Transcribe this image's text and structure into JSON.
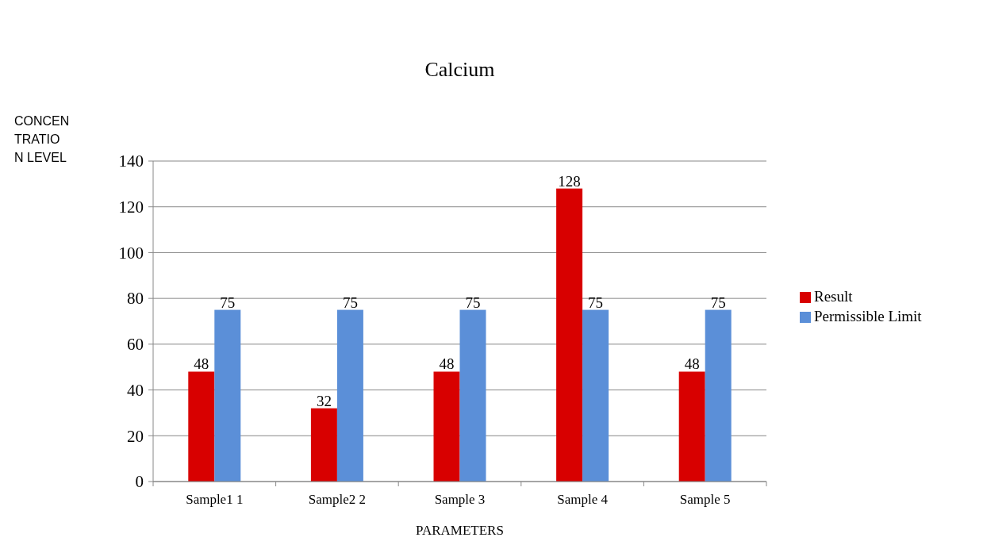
{
  "chart_data": {
    "type": "bar",
    "title": "Calcium",
    "xlabel": "PARAMETERS",
    "ylabel": "CONCENTRATION LEVEL",
    "categories": [
      "Sample1 1",
      "Sample2 2",
      "Sample 3",
      "Sample 4",
      "Sample 5"
    ],
    "series": [
      {
        "name": "Result",
        "color": "#d80000",
        "values": [
          48,
          32,
          48,
          128,
          48
        ]
      },
      {
        "name": "Permissible Limit",
        "color": "#5b8fd8",
        "values": [
          75,
          75,
          75,
          75,
          75
        ]
      }
    ],
    "ylim": [
      0,
      140
    ],
    "yticks": [
      0,
      20,
      40,
      60,
      80,
      100,
      120,
      140
    ],
    "grid": "y",
    "legend": "right",
    "data_labels": true
  }
}
